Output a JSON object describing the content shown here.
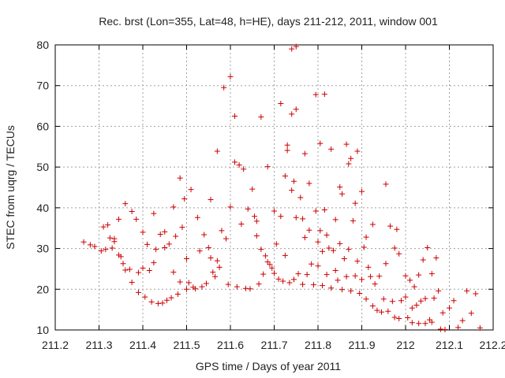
{
  "chart_data": {
    "type": "scatter",
    "title": "Rec. brst (Lon=355, Lat=48, h=HE), days 211-212, 2011, window 001",
    "xlabel": "GPS time / Days of year 2011",
    "ylabel": "STEC from uqrg / TECUs",
    "xlim": [
      211.2,
      212.2
    ],
    "ylim": [
      10,
      80
    ],
    "xticks": [
      "211.2",
      "211.3",
      "211.4",
      "211.5",
      "211.6",
      "211.7",
      "211.8",
      "211.9",
      "212",
      "212.1",
      "212.2"
    ],
    "yticks": [
      "10",
      "20",
      "30",
      "40",
      "50",
      "60",
      "70",
      "80"
    ],
    "grid": true,
    "marker": "+",
    "color": "#cc0000",
    "series": [
      {
        "points": [
          [
            211.265,
            31.6
          ],
          [
            211.28,
            30.9
          ],
          [
            211.29,
            30.5
          ],
          [
            211.305,
            29.4
          ],
          [
            211.31,
            35.3
          ],
          [
            211.315,
            29.8
          ],
          [
            211.32,
            35.8
          ],
          [
            211.325,
            32.6
          ],
          [
            211.33,
            30.1
          ],
          [
            211.335,
            32.4
          ],
          [
            211.335,
            31.7
          ],
          [
            211.345,
            28.4
          ],
          [
            211.345,
            37.2
          ],
          [
            211.35,
            28.0
          ],
          [
            211.355,
            26.3
          ],
          [
            211.36,
            41.0
          ],
          [
            211.36,
            24.7
          ],
          [
            211.37,
            24.9
          ],
          [
            211.375,
            39.1
          ],
          [
            211.375,
            21.7
          ],
          [
            211.385,
            37.2
          ],
          [
            211.39,
            19.2
          ],
          [
            211.39,
            24.1
          ],
          [
            211.4,
            34.0
          ],
          [
            211.4,
            25.2
          ],
          [
            211.405,
            18.1
          ],
          [
            211.41,
            31.0
          ],
          [
            211.415,
            24.6
          ],
          [
            211.42,
            16.9
          ],
          [
            211.425,
            38.6
          ],
          [
            211.425,
            26.5
          ],
          [
            211.43,
            29.8
          ],
          [
            211.435,
            16.5
          ],
          [
            211.44,
            33.5
          ],
          [
            211.445,
            16.6
          ],
          [
            211.45,
            34.1
          ],
          [
            211.45,
            30.2
          ],
          [
            211.455,
            17.3
          ],
          [
            211.46,
            31.1
          ],
          [
            211.465,
            17.9
          ],
          [
            211.47,
            40.2
          ],
          [
            211.47,
            24.2
          ],
          [
            211.475,
            33.0
          ],
          [
            211.48,
            18.8
          ],
          [
            211.485,
            47.3
          ],
          [
            211.485,
            21.8
          ],
          [
            211.49,
            35.2
          ],
          [
            211.495,
            42.2
          ],
          [
            211.5,
            20.0
          ],
          [
            211.5,
            27.5
          ],
          [
            211.505,
            21.6
          ],
          [
            211.51,
            44.5
          ],
          [
            211.515,
            20.5
          ],
          [
            211.52,
            20.1
          ],
          [
            211.525,
            37.6
          ],
          [
            211.53,
            29.4
          ],
          [
            211.535,
            20.6
          ],
          [
            211.54,
            33.4
          ],
          [
            211.545,
            21.4
          ],
          [
            211.55,
            30.2
          ],
          [
            211.555,
            42.0
          ],
          [
            211.555,
            27.7
          ],
          [
            211.56,
            24.2
          ],
          [
            211.565,
            23.1
          ],
          [
            211.57,
            53.9
          ],
          [
            211.57,
            27.0
          ],
          [
            211.575,
            25.4
          ],
          [
            211.58,
            34.4
          ],
          [
            211.585,
            69.5
          ],
          [
            211.59,
            32.4
          ],
          [
            211.595,
            21.2
          ],
          [
            211.6,
            40.2
          ],
          [
            211.6,
            72.2
          ],
          [
            211.61,
            51.2
          ],
          [
            211.61,
            62.5
          ],
          [
            211.615,
            20.6
          ],
          [
            211.62,
            50.5
          ],
          [
            211.625,
            36.0
          ],
          [
            211.63,
            49.5
          ],
          [
            211.635,
            20.2
          ],
          [
            211.64,
            39.7
          ],
          [
            211.645,
            20.1
          ],
          [
            211.65,
            44.6
          ],
          [
            211.655,
            37.9
          ],
          [
            211.66,
            36.7
          ],
          [
            211.66,
            33.1
          ],
          [
            211.665,
            21.3
          ],
          [
            211.67,
            62.3
          ],
          [
            211.67,
            29.8
          ],
          [
            211.675,
            23.7
          ],
          [
            211.68,
            28.2
          ],
          [
            211.685,
            26.7
          ],
          [
            211.685,
            50.1
          ],
          [
            211.69,
            26.1
          ],
          [
            211.695,
            25.2
          ],
          [
            211.7,
            39.2
          ],
          [
            211.7,
            23.9
          ],
          [
            211.705,
            31.1
          ],
          [
            211.71,
            22.5
          ],
          [
            211.715,
            65.6
          ],
          [
            211.715,
            37.9
          ],
          [
            211.72,
            22.0
          ],
          [
            211.725,
            28.3
          ],
          [
            211.725,
            47.8
          ],
          [
            211.73,
            54.1
          ],
          [
            211.73,
            55.4
          ],
          [
            211.735,
            21.6
          ],
          [
            211.74,
            63.0
          ],
          [
            211.74,
            44.3
          ],
          [
            211.74,
            79.0
          ],
          [
            211.745,
            22.4
          ],
          [
            211.745,
            46.5
          ],
          [
            211.75,
            64.2
          ],
          [
            211.75,
            79.6
          ],
          [
            211.75,
            37.6
          ],
          [
            211.755,
            23.8
          ],
          [
            211.76,
            42.5
          ],
          [
            211.765,
            37.3
          ],
          [
            211.765,
            21.2
          ],
          [
            211.77,
            53.3
          ],
          [
            211.77,
            32.7
          ],
          [
            211.775,
            23.6
          ],
          [
            211.78,
            46.0
          ],
          [
            211.78,
            34.5
          ],
          [
            211.785,
            26.2
          ],
          [
            211.79,
            21.1
          ],
          [
            211.795,
            39.2
          ],
          [
            211.795,
            67.8
          ],
          [
            211.8,
            31.6
          ],
          [
            211.8,
            25.7
          ],
          [
            211.805,
            55.8
          ],
          [
            211.805,
            34.4
          ],
          [
            211.81,
            20.9
          ],
          [
            211.81,
            29.3
          ],
          [
            211.815,
            67.9
          ],
          [
            211.815,
            39.5
          ],
          [
            211.82,
            33.3
          ],
          [
            211.82,
            23.6
          ],
          [
            211.825,
            30.1
          ],
          [
            211.83,
            54.4
          ],
          [
            211.83,
            20.3
          ],
          [
            211.835,
            29.5
          ],
          [
            211.84,
            37.1
          ],
          [
            211.84,
            24.6
          ],
          [
            211.845,
            22.2
          ],
          [
            211.85,
            45.1
          ],
          [
            211.85,
            31.2
          ],
          [
            211.855,
            43.4
          ],
          [
            211.855,
            19.9
          ],
          [
            211.86,
            27.5
          ],
          [
            211.865,
            55.6
          ],
          [
            211.865,
            23.1
          ],
          [
            211.87,
            50.8
          ],
          [
            211.87,
            29.8
          ],
          [
            211.875,
            52.1
          ],
          [
            211.875,
            19.6
          ],
          [
            211.88,
            36.8
          ],
          [
            211.885,
            23.3
          ],
          [
            211.885,
            41.1
          ],
          [
            211.89,
            53.9
          ],
          [
            211.89,
            26.9
          ],
          [
            211.895,
            19.0
          ],
          [
            211.9,
            44.0
          ],
          [
            211.9,
            22.4
          ],
          [
            211.905,
            30.3
          ],
          [
            211.91,
            32.8
          ],
          [
            211.91,
            17.6
          ],
          [
            211.915,
            25.4
          ],
          [
            211.92,
            23.1
          ],
          [
            211.925,
            15.9
          ],
          [
            211.925,
            35.9
          ],
          [
            211.93,
            21.3
          ],
          [
            211.935,
            14.8
          ],
          [
            211.94,
            23.2
          ],
          [
            211.945,
            14.4
          ],
          [
            211.95,
            17.6
          ],
          [
            211.955,
            26.3
          ],
          [
            211.955,
            45.8
          ],
          [
            211.96,
            14.6
          ],
          [
            211.965,
            35.5
          ],
          [
            211.97,
            17.0
          ],
          [
            211.975,
            30.1
          ],
          [
            211.975,
            13.1
          ],
          [
            211.98,
            34.7
          ],
          [
            211.985,
            28.7
          ],
          [
            211.985,
            12.8
          ],
          [
            211.99,
            17.2
          ],
          [
            212.0,
            23.3
          ],
          [
            212.0,
            18.1
          ],
          [
            212.005,
            13.0
          ],
          [
            212.01,
            22.2
          ],
          [
            212.015,
            15.4
          ],
          [
            212.015,
            11.8
          ],
          [
            212.02,
            20.6
          ],
          [
            212.025,
            16.1
          ],
          [
            212.03,
            23.5
          ],
          [
            212.03,
            11.6
          ],
          [
            212.035,
            17.1
          ],
          [
            212.04,
            27.2
          ],
          [
            212.045,
            11.6
          ],
          [
            212.045,
            17.7
          ],
          [
            212.05,
            30.2
          ],
          [
            212.055,
            12.5
          ],
          [
            212.06,
            23.8
          ],
          [
            212.06,
            11.9
          ],
          [
            212.065,
            17.8
          ],
          [
            212.07,
            27.7
          ],
          [
            212.075,
            19.6
          ],
          [
            212.08,
            10.2
          ],
          [
            212.085,
            14.2
          ],
          [
            212.09,
            10.1
          ],
          [
            212.1,
            15.4
          ],
          [
            212.11,
            17.2
          ],
          [
            212.12,
            10.6
          ],
          [
            212.13,
            12.3
          ],
          [
            212.14,
            19.6
          ],
          [
            212.15,
            14.1
          ],
          [
            212.16,
            18.9
          ],
          [
            212.17,
            10.5
          ]
        ]
      }
    ]
  }
}
